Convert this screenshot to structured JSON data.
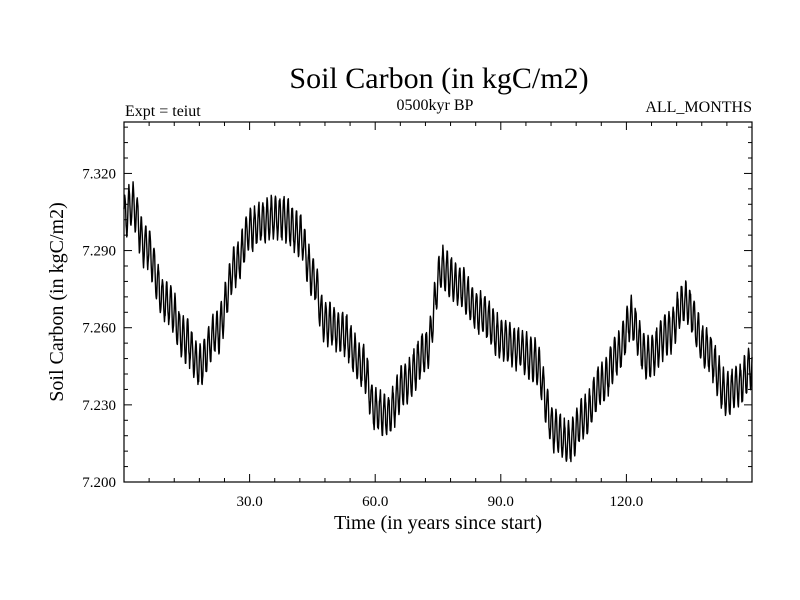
{
  "chart_data": {
    "type": "line",
    "title": "Soil Carbon (in kgC/m2)",
    "subtitle_left": "Expt = teiut",
    "subtitle_center": "0500kyr BP",
    "subtitle_right": "ALL_MONTHS",
    "xlabel": "Time (in years since start)",
    "ylabel": "Soil Carbon (in kgC/m2)",
    "xlim": [
      0,
      150
    ],
    "ylim": [
      7.2,
      7.34
    ],
    "x_ticks": [
      30,
      60,
      90,
      120
    ],
    "x_tick_labels": [
      "30.0",
      "60.0",
      "90.0",
      "120.0"
    ],
    "y_ticks": [
      7.2,
      7.23,
      7.26,
      7.29,
      7.32
    ],
    "y_tick_labels": [
      "7.200",
      "7.230",
      "7.260",
      "7.290",
      "7.320"
    ],
    "grid": false,
    "series": [
      {
        "name": "Soil Carbon",
        "sampling": "monthly",
        "seasonal_amplitude": 0.008,
        "trend_x": [
          0,
          2,
          5,
          10,
          15,
          18,
          22,
          27,
          30,
          34,
          38,
          42,
          45,
          48,
          52,
          57,
          60,
          63,
          67,
          72,
          76,
          80,
          85,
          90,
          94,
          98,
          103,
          106,
          110,
          114,
          118,
          121,
          125,
          130,
          134,
          139,
          144,
          147,
          150
        ],
        "trend_y": [
          7.303,
          7.308,
          7.292,
          7.27,
          7.255,
          7.245,
          7.258,
          7.285,
          7.298,
          7.302,
          7.303,
          7.296,
          7.28,
          7.262,
          7.258,
          7.245,
          7.228,
          7.226,
          7.238,
          7.25,
          7.283,
          7.276,
          7.266,
          7.256,
          7.252,
          7.247,
          7.22,
          7.215,
          7.225,
          7.238,
          7.25,
          7.263,
          7.248,
          7.258,
          7.27,
          7.252,
          7.234,
          7.238,
          7.245
        ]
      }
    ]
  }
}
